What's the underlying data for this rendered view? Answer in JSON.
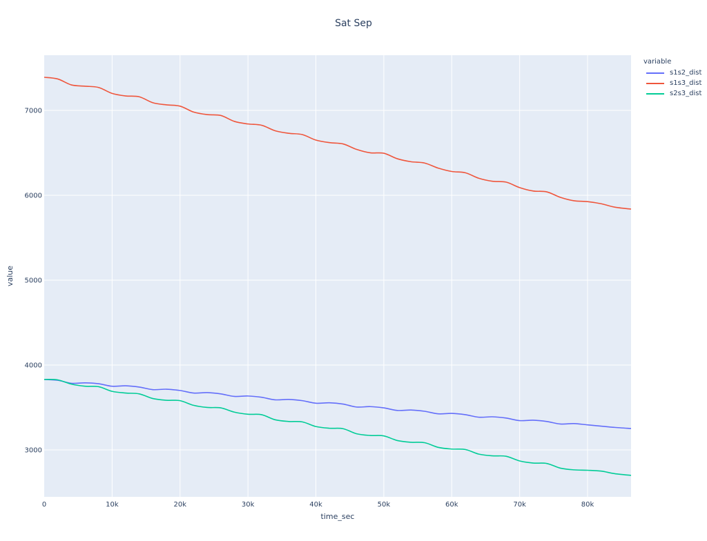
{
  "title": "Sat Sep",
  "chart_data": {
    "type": "line",
    "title": "Sat Sep",
    "xlabel": "time_sec",
    "ylabel": "value",
    "xlim": [
      0,
      86400
    ],
    "ylim": [
      2447,
      7650
    ],
    "x_ticks": [
      0,
      10000,
      20000,
      30000,
      40000,
      50000,
      60000,
      70000,
      80000
    ],
    "x_tick_labels": [
      "0",
      "10k",
      "20k",
      "30k",
      "40k",
      "50k",
      "60k",
      "70k",
      "80k"
    ],
    "y_ticks": [
      3000,
      4000,
      5000,
      6000,
      7000
    ],
    "y_tick_labels": [
      "3000",
      "4000",
      "5000",
      "6000",
      "7000"
    ],
    "grid": true,
    "legend_title": "variable",
    "legend_position": "right",
    "x": [
      0,
      2000,
      4000,
      6000,
      8000,
      10000,
      12000,
      14000,
      16000,
      18000,
      20000,
      22000,
      24000,
      26000,
      28000,
      30000,
      32000,
      34000,
      36000,
      38000,
      40000,
      42000,
      44000,
      46000,
      48000,
      50000,
      52000,
      54000,
      56000,
      58000,
      60000,
      62000,
      64000,
      66000,
      68000,
      70000,
      72000,
      74000,
      76000,
      78000,
      80000,
      82000,
      84000,
      86400
    ],
    "series": [
      {
        "name": "s1s2_dist",
        "color": "#636efa",
        "values": [
          3830,
          3820,
          3785,
          3790,
          3780,
          3750,
          3755,
          3740,
          3710,
          3715,
          3700,
          3670,
          3675,
          3660,
          3630,
          3635,
          3620,
          3590,
          3595,
          3580,
          3550,
          3555,
          3540,
          3505,
          3510,
          3495,
          3465,
          3470,
          3455,
          3425,
          3430,
          3415,
          3385,
          3390,
          3375,
          3345,
          3350,
          3335,
          3305,
          3310,
          3295,
          3280,
          3265,
          3252
        ]
      },
      {
        "name": "s1s3_dist",
        "color": "#ef553b",
        "values": [
          7390,
          7370,
          7300,
          7285,
          7270,
          7200,
          7170,
          7160,
          7090,
          7065,
          7050,
          6980,
          6950,
          6940,
          6870,
          6840,
          6825,
          6760,
          6730,
          6715,
          6650,
          6620,
          6605,
          6540,
          6500,
          6495,
          6430,
          6395,
          6380,
          6320,
          6280,
          6265,
          6200,
          6165,
          6155,
          6090,
          6050,
          6040,
          5975,
          5935,
          5925,
          5900,
          5860,
          5837
        ]
      },
      {
        "name": "s2s3_dist",
        "color": "#00cc96",
        "values": [
          3830,
          3825,
          3775,
          3750,
          3745,
          3690,
          3670,
          3660,
          3605,
          3585,
          3580,
          3525,
          3500,
          3495,
          3445,
          3420,
          3415,
          3355,
          3335,
          3330,
          3275,
          3255,
          3250,
          3190,
          3170,
          3165,
          3110,
          3090,
          3085,
          3030,
          3010,
          3005,
          2950,
          2930,
          2925,
          2870,
          2845,
          2840,
          2785,
          2765,
          2760,
          2750,
          2720,
          2700
        ]
      }
    ]
  }
}
